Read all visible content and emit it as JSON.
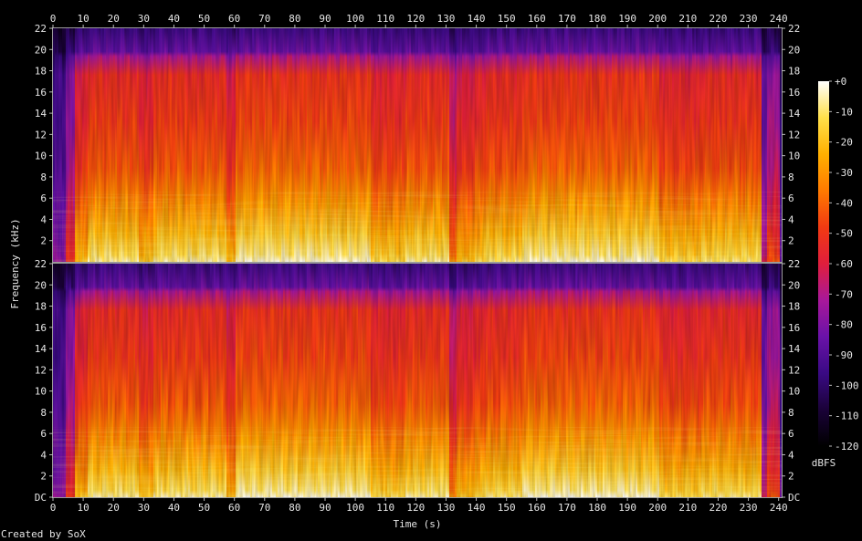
{
  "chart_data": {
    "type": "heatmap",
    "title": "",
    "xlabel": "Time (s)",
    "ylabel": "Frequency (kHz)",
    "xlim": [
      0,
      241
    ],
    "ylim_khz": [
      0,
      22
    ],
    "x_ticks": [
      0,
      10,
      20,
      30,
      40,
      50,
      60,
      70,
      80,
      90,
      100,
      110,
      120,
      130,
      140,
      150,
      160,
      170,
      180,
      190,
      200,
      210,
      220,
      230,
      240
    ],
    "y_tick_labels_top": [
      "22",
      "20",
      "18",
      "16",
      "14",
      "12",
      "10",
      "8",
      "6",
      "4",
      "2"
    ],
    "y_tick_labels_bottom": [
      "22",
      "20",
      "18",
      "16",
      "14",
      "12",
      "10",
      "8",
      "6",
      "4",
      "2",
      "DC"
    ],
    "channels": 2,
    "colorbar": {
      "label": "dBFS",
      "ticks": [
        "+0",
        "-10",
        "-20",
        "-30",
        "-40",
        "-50",
        "-60",
        "-70",
        "-80",
        "-90",
        "-100",
        "-110",
        "-120"
      ],
      "range": [
        -120,
        0
      ]
    },
    "grid": false,
    "colormap": [
      "#000000",
      "#1a0238",
      "#3a0a84",
      "#6a12a8",
      "#a8189a",
      "#e01e3c",
      "#f23a12",
      "#ff7a00",
      "#ffb000",
      "#ffe04a",
      "#ffffff"
    ]
  },
  "footer": {
    "credit": "Created by SoX"
  }
}
